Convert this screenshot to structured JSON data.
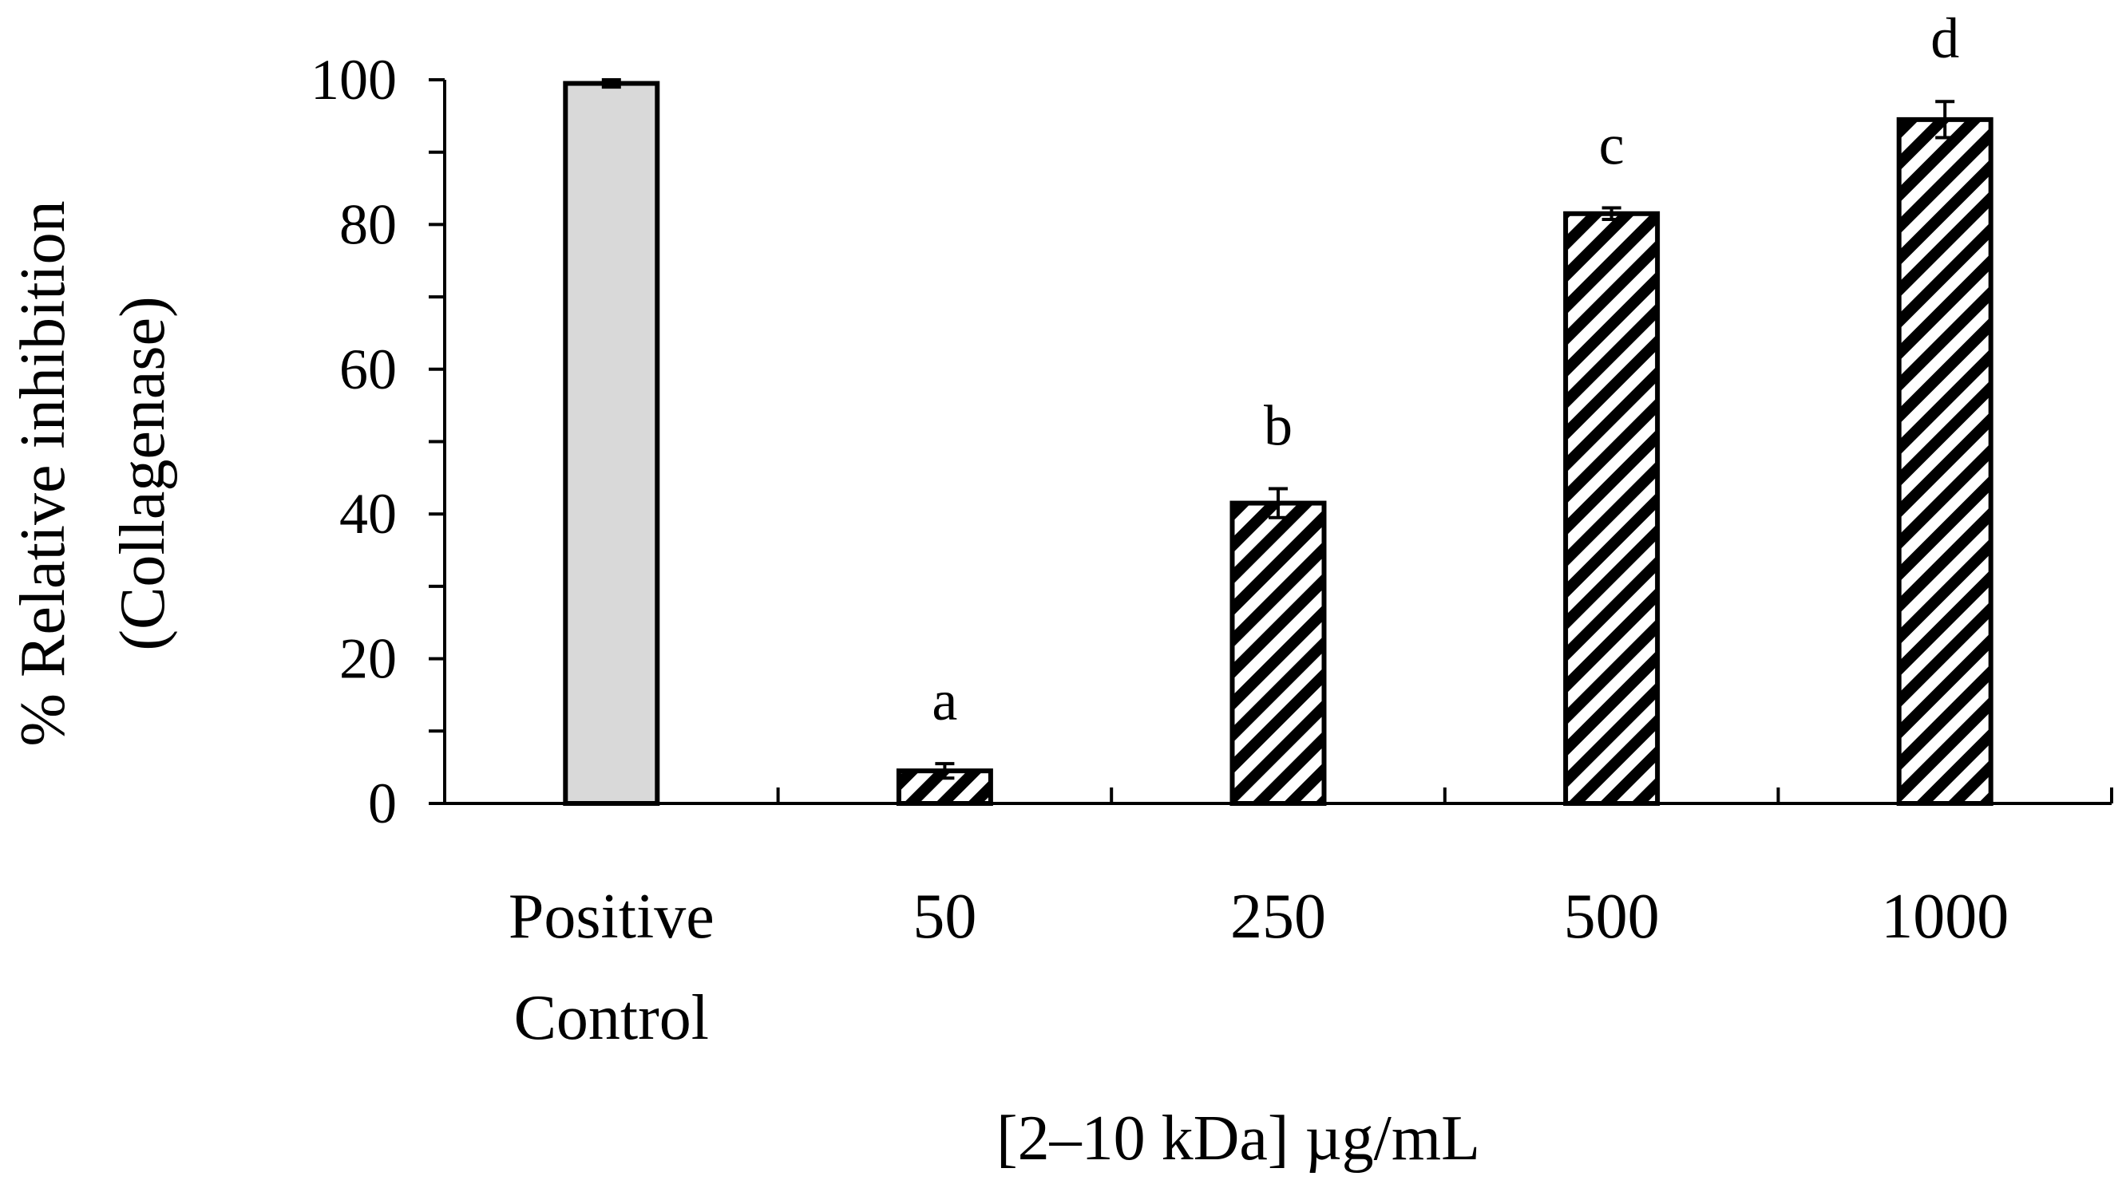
{
  "chart_data": {
    "type": "bar",
    "title": "",
    "xlabel": "[2–10 kDa] µg/mL",
    "ylabel_lines": [
      "% Relative inhibition",
      "(Collagenase)"
    ],
    "ylim": [
      0,
      100
    ],
    "yticks": [
      0,
      20,
      40,
      60,
      80,
      100
    ],
    "grid": false,
    "categories": [
      {
        "lines": [
          "Positive",
          "Control"
        ]
      },
      {
        "lines": [
          "50"
        ]
      },
      {
        "lines": [
          "250"
        ]
      },
      {
        "lines": [
          "500"
        ]
      },
      {
        "lines": [
          "1000"
        ]
      }
    ],
    "values": [
      99.5,
      4.5,
      41.5,
      81.5,
      94.5
    ],
    "errors": [
      0.5,
      1.0,
      2.0,
      0.8,
      2.5
    ],
    "significance_letters": [
      "",
      "a",
      "b",
      "c",
      "d"
    ],
    "styles": [
      "solid-gray",
      "hatched",
      "hatched",
      "hatched",
      "hatched"
    ],
    "colors": {
      "gray_fill": "#d9d9d9",
      "ink": "#000000",
      "background": "#ffffff"
    }
  }
}
